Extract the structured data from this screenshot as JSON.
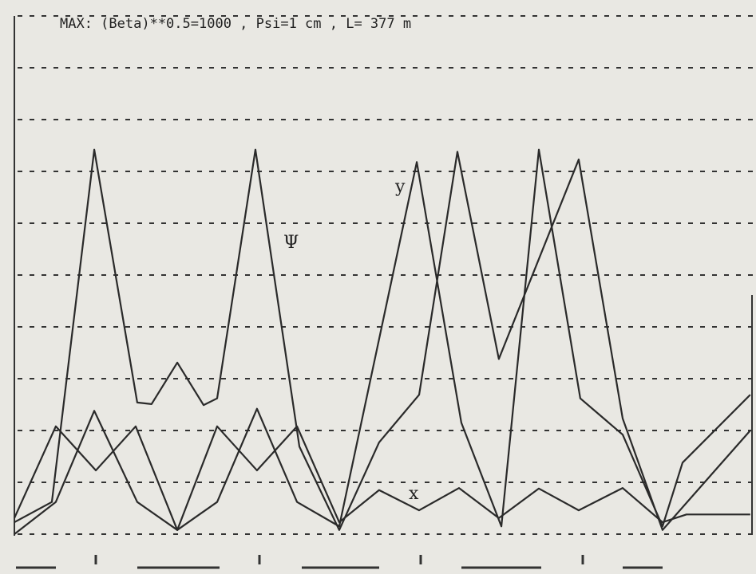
{
  "chart_data": {
    "type": "line",
    "title": "MAX: (Beta)**0.5=1000 , Psi=1 cm , L= 377 m",
    "xlim": [
      0,
      377
    ],
    "ylim": [
      0,
      10
    ],
    "yticks": [
      0,
      1,
      2,
      3,
      4,
      5,
      6,
      7,
      8,
      9,
      10
    ],
    "grid": true,
    "series": [
      {
        "name": "Ψ",
        "color": "#2a2a2a",
        "x": [
          0,
          19.1,
          40.7,
          62.6,
          69.9,
          83.0,
          96.4,
          103.3,
          122.8,
          145.2,
          165.5,
          185.8,
          206.2,
          225.7,
          246.8,
          287.5,
          309.9,
          330.2,
          374.9
        ],
        "values": [
          0.23,
          0.62,
          7.42,
          2.54,
          2.51,
          3.31,
          2.49,
          2.62,
          7.42,
          1.69,
          0.08,
          1.77,
          2.69,
          7.38,
          3.38,
          7.23,
          2.23,
          0.08,
          2.0
        ]
      },
      {
        "name": "y",
        "color": "#2a2a2a",
        "x": [
          0,
          21.1,
          40.7,
          62.6,
          83.0,
          103.3,
          123.6,
          144.0,
          165.5,
          205.0,
          227.7,
          248.1,
          267.2,
          288.3,
          309.9,
          330.2,
          340.4,
          374.9
        ],
        "values": [
          0,
          0.62,
          2.38,
          0.62,
          0.08,
          0.62,
          2.42,
          0.62,
          0.15,
          7.18,
          2.15,
          0.15,
          7.42,
          2.62,
          1.92,
          0.15,
          1.38,
          2.69
        ]
      },
      {
        "name": "x",
        "color": "#2a2a2a",
        "x": [
          0,
          21.1,
          41.5,
          61.8,
          83.0,
          103.3,
          123.6,
          144.0,
          165.5,
          185.8,
          206.2,
          226.5,
          246.8,
          267.2,
          287.5,
          309.9,
          330.2,
          342.4,
          374.9
        ],
        "values": [
          0.31,
          2.08,
          1.23,
          2.08,
          0.08,
          2.08,
          1.23,
          2.08,
          0.23,
          0.85,
          0.46,
          0.89,
          0.31,
          0.88,
          0.46,
          0.89,
          0.23,
          0.38,
          0.38
        ]
      }
    ]
  }
}
